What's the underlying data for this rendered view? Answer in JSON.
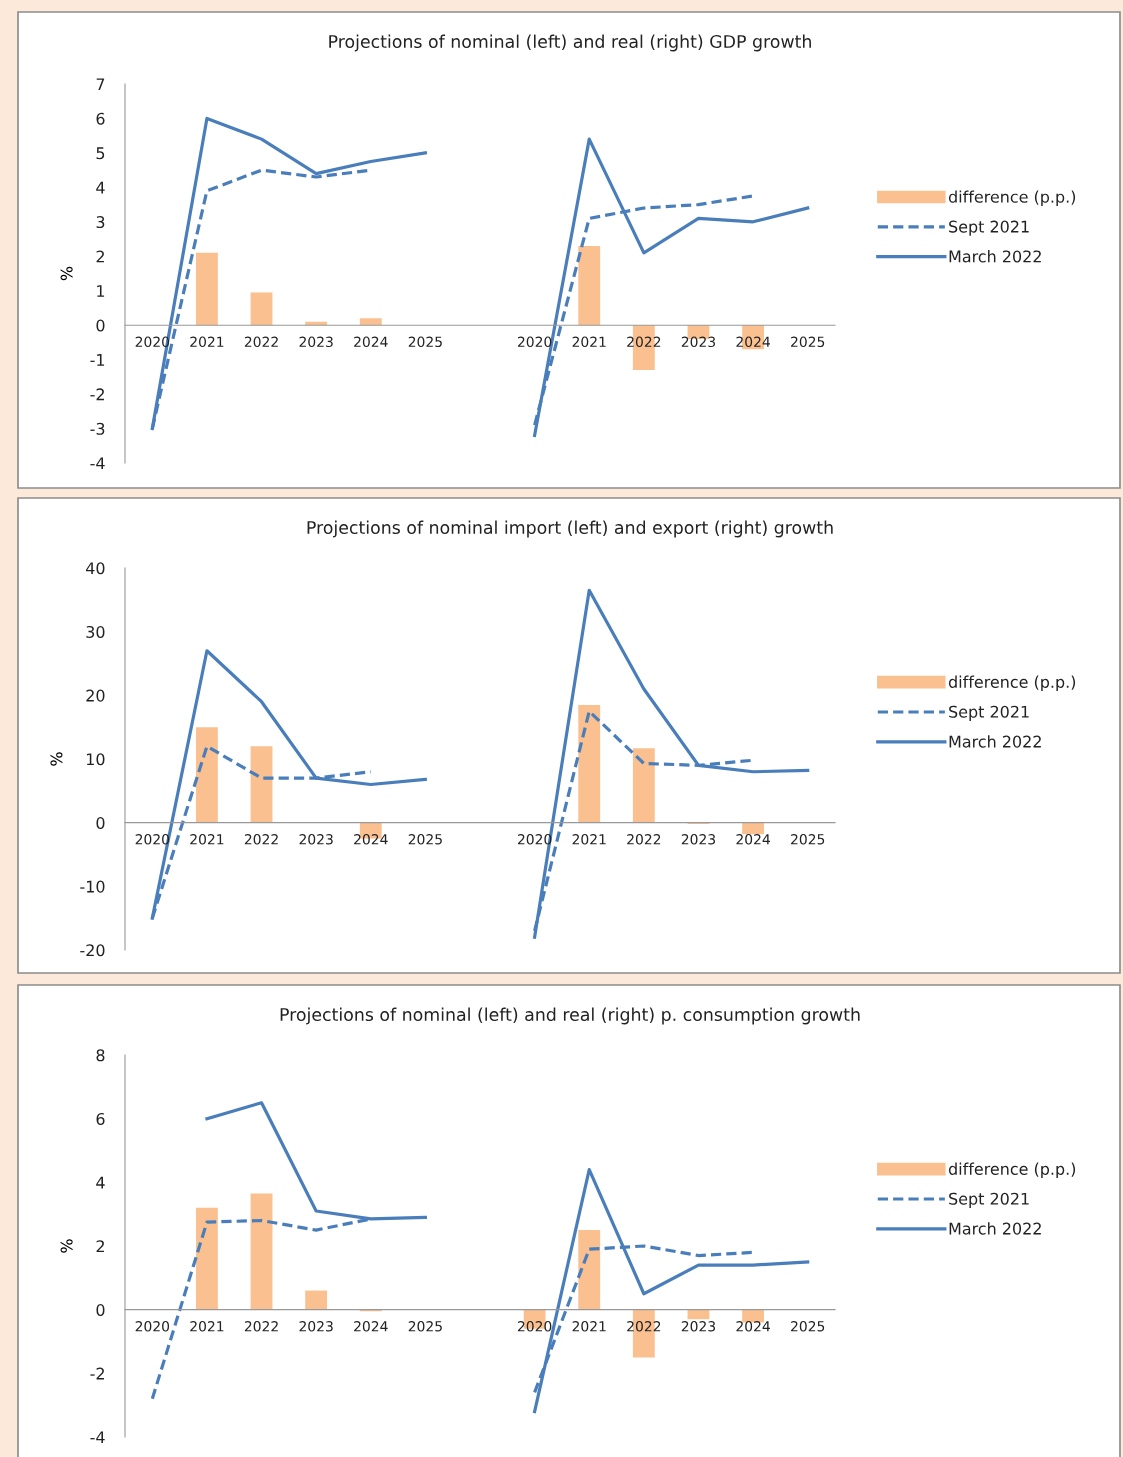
{
  "chart_data": [
    {
      "type": "line",
      "title": "Projections of nominal (left) and real (right) GDP growth",
      "ylabel": "%",
      "categories": [
        "2020",
        "2021",
        "2022",
        "2023",
        "2024",
        "2025",
        null,
        "2020",
        "2021",
        "2022",
        "2023",
        "2024",
        "2025"
      ],
      "ylim": [
        -4,
        7
      ],
      "yticks": [
        -4,
        -3,
        -2,
        -1,
        0,
        1,
        2,
        3,
        4,
        5,
        6,
        7
      ],
      "grid": false,
      "legend": "right",
      "marker": "none",
      "series": [
        {
          "name": "difference (p.p.)",
          "type": "bar",
          "color": "#fac090",
          "values": [
            null,
            2.1,
            0.95,
            0.1,
            0.2,
            null,
            null,
            null,
            2.3,
            -1.3,
            -0.4,
            -0.7,
            null
          ]
        },
        {
          "name": "Sept 2021",
          "line_style": "dashed",
          "color": "#4a7ebb",
          "values": [
            -3.0,
            3.9,
            4.5,
            4.3,
            4.5,
            null,
            null,
            -2.9,
            3.1,
            3.4,
            3.5,
            3.75,
            null
          ]
        },
        {
          "name": "March 2022",
          "line_style": "solid",
          "color": "#4a7ebb",
          "values": [
            -3.0,
            6.0,
            5.4,
            4.4,
            4.75,
            5.0,
            null,
            -3.2,
            5.4,
            2.1,
            3.1,
            3.0,
            3.4
          ]
        }
      ]
    },
    {
      "type": "line",
      "title": "Projections of nominal import (left) and export (right) growth",
      "ylabel": "%",
      "categories": [
        "2020",
        "2021",
        "2022",
        "2023",
        "2024",
        "2025",
        null,
        "2020",
        "2021",
        "2022",
        "2023",
        "2024",
        "2025"
      ],
      "ylim": [
        -20,
        40
      ],
      "yticks": [
        -20,
        -10,
        0,
        10,
        20,
        30,
        40
      ],
      "grid": false,
      "legend": "right",
      "marker": "none",
      "series": [
        {
          "name": "difference (p.p.)",
          "type": "bar",
          "color": "#fac090",
          "values": [
            null,
            15,
            12,
            null,
            -2.5,
            null,
            null,
            null,
            18.5,
            11.7,
            -0.2,
            -1.8,
            null
          ]
        },
        {
          "name": "Sept 2021",
          "line_style": "dashed",
          "color": "#4a7ebb",
          "values": [
            -15,
            12,
            7,
            7,
            8,
            null,
            null,
            -17,
            17.5,
            9.3,
            9,
            9.8,
            null
          ]
        },
        {
          "name": "March 2022",
          "line_style": "solid",
          "color": "#4a7ebb",
          "values": [
            -15,
            27,
            19,
            7,
            6,
            6.8,
            null,
            -18,
            36.5,
            21,
            9,
            8,
            8.2
          ]
        }
      ]
    },
    {
      "type": "line",
      "title": "Projections of nominal (left) and real (right) p. consumption growth",
      "ylabel": "%",
      "categories": [
        "2020",
        "2021",
        "2022",
        "2023",
        "2024",
        "2025",
        null,
        "2020",
        "2021",
        "2022",
        "2023",
        "2024",
        "2025"
      ],
      "ylim": [
        -4,
        8
      ],
      "yticks": [
        -4,
        -2,
        0,
        2,
        4,
        6,
        8
      ],
      "grid": false,
      "legend": "right",
      "marker": "none",
      "series": [
        {
          "name": "difference (p.p.)",
          "type": "bar",
          "color": "#fac090",
          "values": [
            null,
            3.2,
            3.65,
            0.6,
            -0.05,
            null,
            null,
            -0.6,
            2.5,
            -1.5,
            -0.3,
            -0.4,
            null
          ]
        },
        {
          "name": "Sept 2021",
          "line_style": "dashed",
          "color": "#4a7ebb",
          "values": [
            -2.8,
            2.75,
            2.8,
            2.5,
            2.85,
            null,
            null,
            -2.6,
            1.9,
            2.0,
            1.7,
            1.8,
            null
          ]
        },
        {
          "name": "March 2022",
          "line_style": "solid",
          "color": "#4a7ebb",
          "values": [
            null,
            6.0,
            6.5,
            3.1,
            2.85,
            2.9,
            null,
            -3.2,
            4.4,
            0.5,
            1.4,
            1.4,
            1.5
          ]
        }
      ]
    }
  ]
}
